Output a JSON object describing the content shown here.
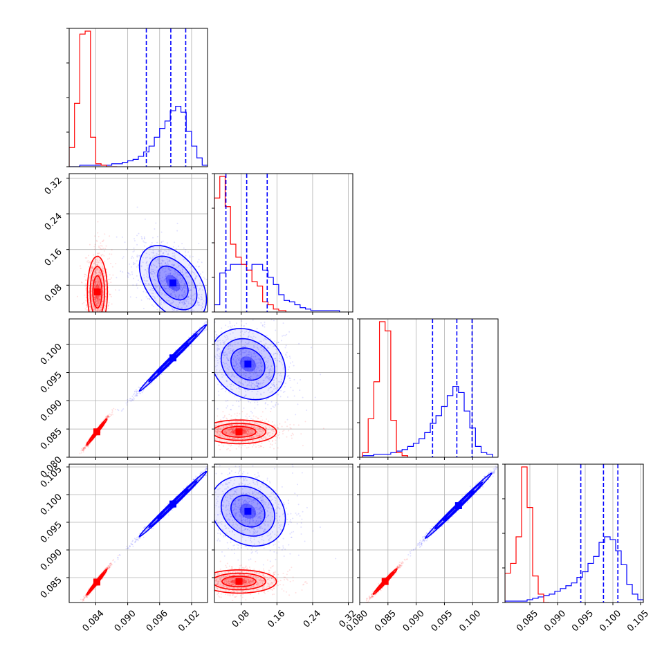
{
  "chart_data": {
    "type": "corner",
    "grid": true,
    "colors": {
      "red": "#ff0000",
      "blue": "#0000ff",
      "grid": "#b0b0b0"
    },
    "parameters": [
      {
        "index": 0,
        "range": [
          0.079,
          0.105
        ],
        "ticks": [
          0.084,
          0.09,
          0.096,
          0.102
        ],
        "tick_labels": [
          "0.084",
          "0.090",
          "0.096",
          "0.102"
        ]
      },
      {
        "index": 1,
        "range": [
          0.02,
          0.33
        ],
        "ticks": [
          0.08,
          0.16,
          0.24,
          0.32
        ],
        "tick_labels": [
          "0.08",
          "0.16",
          "0.24",
          "0.32"
        ]
      },
      {
        "index": 2,
        "range": [
          0.08,
          0.1045
        ],
        "ticks": [
          0.08,
          0.085,
          0.09,
          0.095,
          0.1
        ],
        "tick_labels": [
          "0.080",
          "0.085",
          "0.090",
          "0.095",
          "0.100"
        ]
      },
      {
        "index": 3,
        "range": [
          0.0805,
          0.1055
        ],
        "ticks": [
          0.085,
          0.09,
          0.095,
          0.1,
          0.105
        ],
        "tick_labels": [
          "0.085",
          "0.090",
          "0.095",
          "0.100",
          "0.105"
        ]
      }
    ],
    "diagonal": [
      {
        "param": 0,
        "red": {
          "edges": [
            0.079,
            0.08,
            0.081,
            0.082,
            0.083,
            0.084,
            0.085,
            0.086,
            0.087,
            0.088
          ],
          "counts": [
            0.13,
            0.43,
            0.9,
            0.92,
            0.2,
            0.02,
            0.01,
            0,
            0
          ]
        },
        "blue": {
          "edges": [
            0.079,
            0.08,
            0.081,
            0.082,
            0.083,
            0.084,
            0.085,
            0.086,
            0.087,
            0.088,
            0.089,
            0.09,
            0.091,
            0.092,
            0.093,
            0.094,
            0.095,
            0.096,
            0.097,
            0.098,
            0.099,
            0.1,
            0.101,
            0.102,
            0.103,
            0.104,
            0.105
          ],
          "counts": [
            0,
            0,
            0.01,
            0.01,
            0.01,
            0.01,
            0.01,
            0.01,
            0.02,
            0.02,
            0.03,
            0.04,
            0.05,
            0.07,
            0.1,
            0.14,
            0.2,
            0.26,
            0.31,
            0.38,
            0.41,
            0.37,
            0.24,
            0.14,
            0.06,
            0.01
          ]
        },
        "quantiles": [
          0.0935,
          0.0981,
          0.1009
        ]
      },
      {
        "param": 1,
        "red": {
          "edges": [
            0.02,
            0.032,
            0.044,
            0.056,
            0.068,
            0.08,
            0.092,
            0.104,
            0.116,
            0.128,
            0.14,
            0.152,
            0.164,
            0.18
          ],
          "counts": [
            0.79,
            0.94,
            0.73,
            0.47,
            0.38,
            0.33,
            0.29,
            0.21,
            0.18,
            0.07,
            0.05,
            0.02,
            0.01
          ]
        },
        "blue": {
          "edges": [
            0.02,
            0.032,
            0.044,
            0.056,
            0.068,
            0.08,
            0.092,
            0.104,
            0.116,
            0.128,
            0.14,
            0.152,
            0.164,
            0.176,
            0.188,
            0.2,
            0.212,
            0.224,
            0.236,
            0.248,
            0.26,
            0.272,
            0.284,
            0.3
          ],
          "counts": [
            0.05,
            0.27,
            0.29,
            0.33,
            0.33,
            0.33,
            0.29,
            0.33,
            0.33,
            0.29,
            0.24,
            0.19,
            0.12,
            0.08,
            0.07,
            0.05,
            0.03,
            0.02,
            0.01,
            0.01,
            0.01,
            0.01,
            0.01
          ]
        },
        "quantiles": [
          0.0457,
          0.0923,
          0.1382
        ]
      },
      {
        "param": 2,
        "red": {
          "edges": [
            0.0805,
            0.0815,
            0.0825,
            0.0835,
            0.0845,
            0.0855,
            0.0865,
            0.0875,
            0.0885
          ],
          "counts": [
            0.03,
            0.25,
            0.49,
            0.88,
            0.82,
            0.24,
            0.03,
            0.01
          ]
        },
        "blue": {
          "edges": [
            0.0805,
            0.0815,
            0.0825,
            0.0835,
            0.0845,
            0.0855,
            0.0865,
            0.0875,
            0.0885,
            0.0895,
            0.0905,
            0.0915,
            0.0925,
            0.0935,
            0.0945,
            0.0955,
            0.0965,
            0.0975,
            0.0985,
            0.0995,
            0.1005,
            0.1015,
            0.1025,
            0.1035
          ],
          "counts": [
            0.01,
            0.01,
            0.02,
            0.02,
            0.02,
            0.03,
            0.04,
            0.05,
            0.07,
            0.09,
            0.12,
            0.16,
            0.22,
            0.27,
            0.33,
            0.4,
            0.46,
            0.42,
            0.3,
            0.19,
            0.07,
            0.03,
            0.02
          ]
        },
        "quantiles": [
          0.0929,
          0.0972,
          0.0999
        ]
      },
      {
        "param": 3,
        "red": {
          "edges": [
            0.0805,
            0.0815,
            0.0825,
            0.0835,
            0.0845,
            0.0855,
            0.0865,
            0.0875,
            0.0885
          ],
          "counts": [
            0.21,
            0.28,
            0.47,
            0.97,
            0.68,
            0.19,
            0.06,
            0
          ]
        },
        "blue": {
          "edges": [
            0.0805,
            0.0815,
            0.0825,
            0.0835,
            0.0845,
            0.0855,
            0.0865,
            0.0875,
            0.0885,
            0.0895,
            0.0905,
            0.0915,
            0.0925,
            0.0935,
            0.0945,
            0.0955,
            0.0965,
            0.0975,
            0.0985,
            0.0995,
            0.1005,
            0.1015,
            0.1025,
            0.1035,
            0.1045,
            0.1055
          ],
          "counts": [
            0.01,
            0.01,
            0.01,
            0.01,
            0.02,
            0.03,
            0.04,
            0.05,
            0.06,
            0.08,
            0.1,
            0.12,
            0.14,
            0.18,
            0.22,
            0.28,
            0.33,
            0.43,
            0.47,
            0.45,
            0.37,
            0.27,
            0.13,
            0.06,
            0.02
          ]
        },
        "quantiles": [
          0.0942,
          0.0983,
          0.1009
        ]
      }
    ],
    "lower": [
      {
        "row": 1,
        "col": 0,
        "red": {
          "cx": 0.0843,
          "cy": 0.065,
          "sx": 0.0009,
          "sy": 0.038,
          "rho": 0.0
        },
        "blue": {
          "cx": 0.0985,
          "cy": 0.085,
          "sx": 0.003,
          "sy": 0.04,
          "rho": -0.45
        }
      },
      {
        "row": 2,
        "col": 0,
        "red": {
          "cx": 0.0842,
          "cy": 0.0845,
          "sx": 0.0009,
          "sy": 0.0011,
          "rho": 0.985
        },
        "blue": {
          "cx": 0.0985,
          "cy": 0.0976,
          "sx": 0.003,
          "sy": 0.0028,
          "rho": 0.995
        }
      },
      {
        "row": 2,
        "col": 1,
        "red": {
          "cx": 0.075,
          "cy": 0.0845,
          "sx": 0.04,
          "sy": 0.001,
          "rho": 0.0
        },
        "blue": {
          "cx": 0.095,
          "cy": 0.0965,
          "sx": 0.04,
          "sy": 0.003,
          "rho": -0.2
        }
      },
      {
        "row": 3,
        "col": 0,
        "red": {
          "cx": 0.0842,
          "cy": 0.0842,
          "sx": 0.0009,
          "sy": 0.0011,
          "rho": 0.985
        },
        "blue": {
          "cx": 0.0985,
          "cy": 0.0983,
          "sx": 0.003,
          "sy": 0.0028,
          "rho": 0.995
        }
      },
      {
        "row": 3,
        "col": 1,
        "red": {
          "cx": 0.075,
          "cy": 0.0843,
          "sx": 0.04,
          "sy": 0.001,
          "rho": 0.0
        },
        "blue": {
          "cx": 0.095,
          "cy": 0.097,
          "sx": 0.04,
          "sy": 0.003,
          "rho": -0.2
        }
      },
      {
        "row": 3,
        "col": 2,
        "red": {
          "cx": 0.0845,
          "cy": 0.0843,
          "sx": 0.001,
          "sy": 0.0011,
          "rho": 0.985
        },
        "blue": {
          "cx": 0.0975,
          "cy": 0.098,
          "sx": 0.0028,
          "sy": 0.0028,
          "rho": 0.995
        }
      }
    ]
  }
}
